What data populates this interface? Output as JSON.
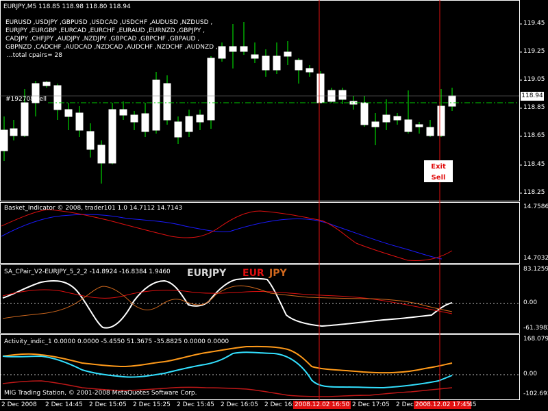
{
  "main_chart": {
    "header": "EURJPY,M5  118.85 118.98 118.80 118.94",
    "pairs_lines": [
      "EURUSD ,USDJPY ,GBPUSD ,USDCAD ,USDCHF ,AUDUSD ,NZDUSD ,",
      "EURJPY ,EURGBP ,EURCAD ,EURCHF ,EURAUD ,EURNZD ,GBPJPY ,",
      "CADJPY ,CHFJPY ,AUDJPY ,NZDJPY ,GBPCAD ,GBPCHF ,GBPAUD ,",
      "GBPNZD ,CADCHF ,AUDCAD ,NZDCAD ,AUDCHF ,NZDCHF ,AUDNZD ,"
    ],
    "total_pairs": "...total cpairs= 28",
    "order_label": "#192708 sell",
    "exit_label": "Exit Sell",
    "current_price": "118.94",
    "price_axis": [
      "119.45",
      "119.25",
      "119.05",
      "118.85",
      "118.65",
      "118.45",
      "118.25"
    ]
  },
  "basket_panel": {
    "title": "Basket_Indicator © 2008, trader101 1.0 14.7112 14.7143",
    "axis": [
      "14.7586",
      "14.7032"
    ]
  },
  "cpair_panel": {
    "title": "SA_CPair_V2-EURJPY_5_2_2 -14.8924 -16.8384 1.9460",
    "pair": "EURJPY",
    "base": "EUR",
    "quote": "JPY",
    "axis": [
      "83.1259",
      "0.00",
      "-61.3982"
    ]
  },
  "activity_panel": {
    "title": "Activity_indic_1 0.0000 0.0000 -5.4550 51.3675 -35.8825 0.0000 0.0000",
    "axis": [
      "168.0794",
      "0.00",
      "-102.693"
    ]
  },
  "footer_copyright": "MIG Trading Station, © 2001-2008 MetaQuotes Software Corp.",
  "time_axis": [
    "2 Dec 2008",
    "2 Dec 14:45",
    "2 Dec 15:05",
    "2 Dec 15:25",
    "2 Dec 15:45",
    "2 Dec 16:05",
    "2 Dec 16:",
    "2 Dec 17:05",
    "2 Dec ",
    "45"
  ],
  "time_marker_1": "2008.12.02 16:50",
  "time_marker_2": "2008.12.02 17:45",
  "colors": {
    "bull_candle": "#00ff00",
    "bear_candle": "#ffffff",
    "vertical_line": "#e01010",
    "quote_currency": "#d2691e",
    "base_currency": "#e01010"
  }
}
